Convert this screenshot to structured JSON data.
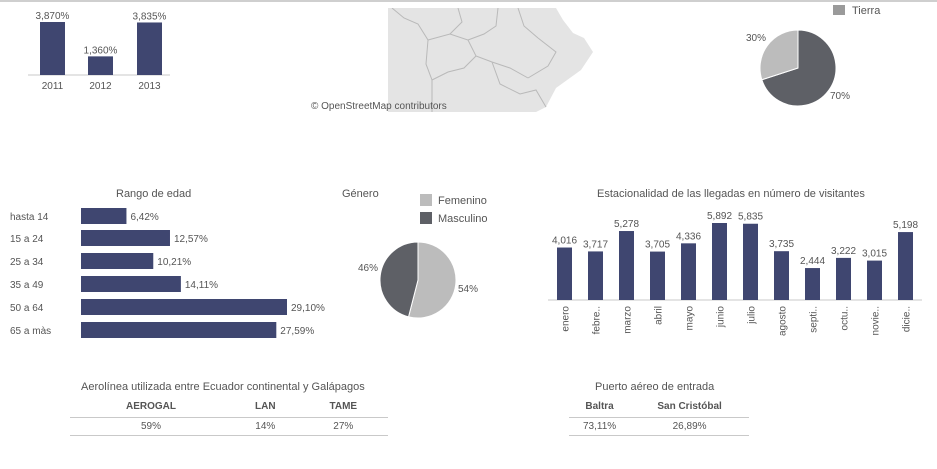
{
  "colors": {
    "bar": "#3f4670",
    "dark_slice": "#5e6066",
    "light_slice": "#bcbcbc",
    "axis": "#c9c9c9",
    "text": "#555555",
    "map_land": "#e4e4e4",
    "map_border": "#b9b9b9"
  },
  "map": {
    "attribution": "© OpenStreetMap contributors"
  },
  "chart_data": [
    {
      "type": "bar",
      "categories": [
        "2011",
        "2012",
        "2013"
      ],
      "values": [
        3.87,
        1.36,
        3.835
      ],
      "value_labels": [
        "3,870%",
        "1,360%",
        "3,835%"
      ]
    },
    {
      "type": "pie",
      "legend": [
        {
          "name": "Tierra",
          "color": "#9a9a9a"
        }
      ],
      "slices": [
        {
          "value": 70,
          "label": "70%",
          "color": "#5e6066"
        },
        {
          "value": 30,
          "label": "30%",
          "color": "#bcbcbc"
        }
      ]
    },
    {
      "type": "bar",
      "orientation": "horizontal",
      "title": "Rango de edad",
      "categories": [
        "hasta 14",
        "15 a 24",
        "25 a 34",
        "35 a 49",
        "50 a 64",
        "65 a màs"
      ],
      "values": [
        6.42,
        12.57,
        10.21,
        14.11,
        29.1,
        27.59
      ],
      "value_labels": [
        "6,42%",
        "12,57%",
        "10,21%",
        "14,11%",
        "29,10%",
        "27,59%"
      ]
    },
    {
      "type": "pie",
      "title": "Género",
      "legend": [
        {
          "name": "Femenino",
          "color": "#bcbcbc"
        },
        {
          "name": "Masculino",
          "color": "#5e6066"
        }
      ],
      "slices": [
        {
          "name": "Femenino",
          "value": 54,
          "label": "54%",
          "color": "#bcbcbc"
        },
        {
          "name": "Masculino",
          "value": 46,
          "label": "46%",
          "color": "#5e6066"
        }
      ]
    },
    {
      "type": "bar",
      "title": "Estacionalidad de las llegadas en número de visitantes",
      "categories": [
        "enero",
        "febre..",
        "marzo",
        "abril",
        "mayo",
        "junio",
        "julio",
        "agosto",
        "septi..",
        "octu..",
        "novie..",
        "dicie.."
      ],
      "values": [
        4016,
        3717,
        5278,
        3705,
        4336,
        5892,
        5835,
        3735,
        2444,
        3222,
        3015,
        5198
      ],
      "value_labels": [
        "4,016",
        "3,717",
        "5,278",
        "3,705",
        "4,336",
        "5,892",
        "5,835",
        "3,735",
        "2,444",
        "3,222",
        "3,015",
        "5,198"
      ]
    },
    {
      "type": "table",
      "title": "Aerolínea utilizada entre Ecuador continental y Galápagos",
      "columns": [
        "AEROGAL",
        "LAN",
        "TAME"
      ],
      "rows": [
        [
          "59%",
          "14%",
          "27%"
        ]
      ]
    },
    {
      "type": "table",
      "title": "Puerto aéreo de entrada",
      "columns": [
        "Baltra",
        "San Cristóbal"
      ],
      "rows": [
        [
          "73,11%",
          "26,89%"
        ]
      ]
    }
  ]
}
